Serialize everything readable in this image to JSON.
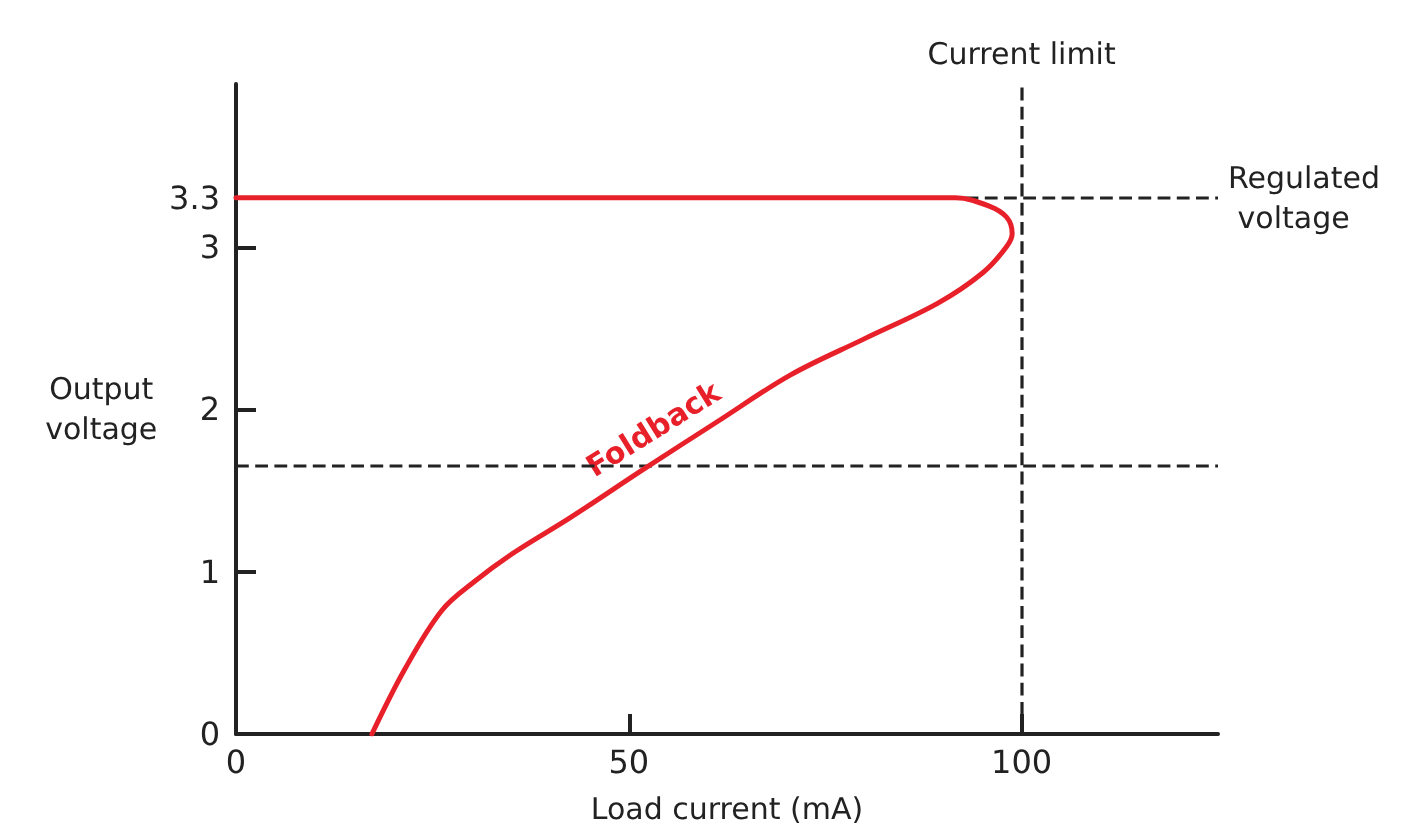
{
  "chart_data": {
    "type": "line",
    "xlabel": "Load current (mA)",
    "ylabel": "Output voltage",
    "xlim": [
      0,
      125
    ],
    "xticks": [
      0,
      50,
      100
    ],
    "ylim": [
      0,
      4
    ],
    "yticks": [
      0,
      1,
      2,
      3,
      3.3
    ],
    "series": [
      {
        "color": "#e8202a",
        "x": [
          0,
          40,
          80,
          87,
          91.6,
          95.8,
          98.1,
          98.8,
          98.1,
          95.1,
          89.3,
          79.9,
          70.6,
          61.2,
          51.9,
          42.5,
          35.5,
          30.4,
          26.2,
          21.5,
          17.3
        ],
        "values": [
          3.3,
          3.3,
          3.3,
          3.3,
          3.3,
          3.25,
          3.18,
          3.08,
          3.0,
          2.84,
          2.65,
          2.43,
          2.21,
          1.92,
          1.63,
          1.33,
          1.12,
          0.94,
          0.76,
          0.4,
          0
        ]
      }
    ],
    "ref_lines": [
      {
        "axis": "x",
        "value": 100,
        "label": "Current limit",
        "color": "#222222",
        "line_style": "dashed"
      },
      {
        "axis": "y",
        "value": 3.3,
        "label": "Regulated voltage",
        "color": "#222222",
        "line_style": "dashed"
      },
      {
        "axis": "y",
        "value": 1.65,
        "label": null,
        "color": "#222222",
        "line_style": "dashed"
      }
    ],
    "annotations": [
      {
        "text": "Foldback",
        "x": 55,
        "y": 1.73
      }
    ],
    "grid": false,
    "marker": "none",
    "line_style": "solid"
  }
}
